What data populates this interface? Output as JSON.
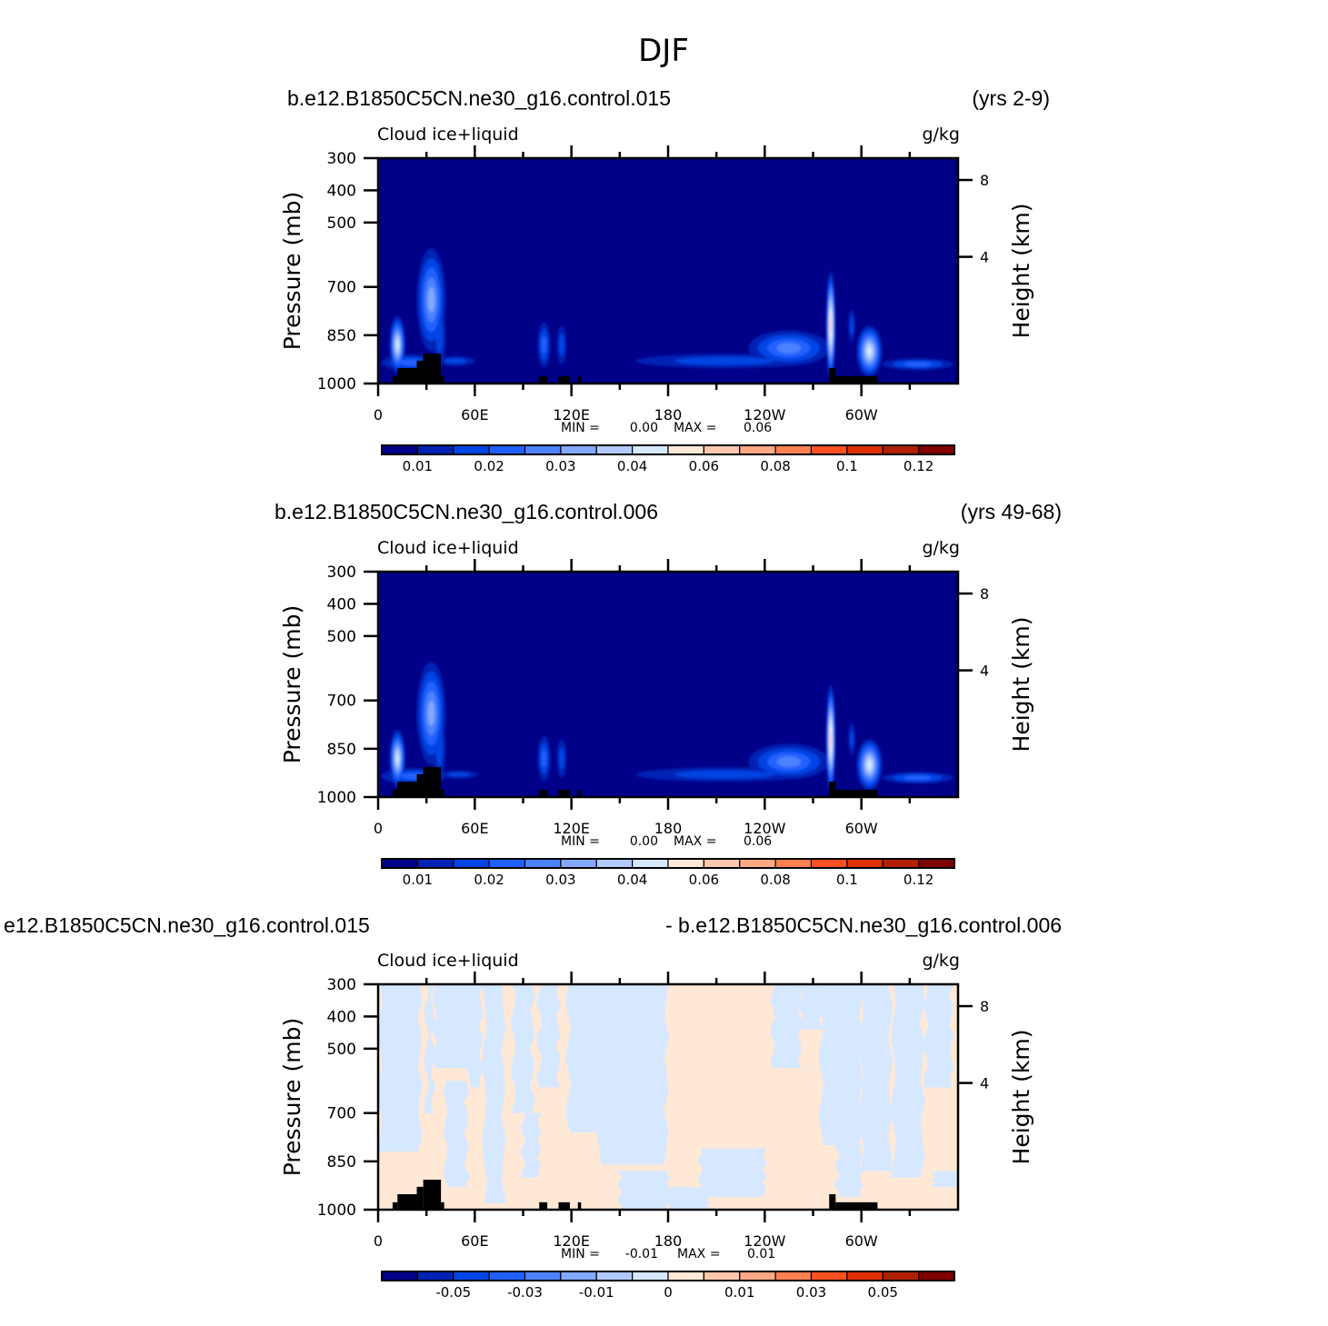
{
  "main_title": "DJF",
  "colors": {
    "fill_levels": [
      "#000088",
      "#0022b4",
      "#0044e4",
      "#2060ff",
      "#4c82ff",
      "#82a8ff",
      "#b2caff",
      "#d6e8ff",
      "#ffe8d6",
      "#ffc8ae",
      "#ffa884",
      "#ff8050",
      "#ff5022",
      "#e03000",
      "#b02000",
      "#800000"
    ],
    "topography": "#000000"
  },
  "chart_data": [
    {
      "type": "contour",
      "title_left": "b.e12.B1850C5CN.ne30_g16.control.015",
      "title_right": "(yrs 2-9)",
      "field_label": "Cloud ice+liquid",
      "units": "g/kg",
      "ylabel": "Pressure (mb)",
      "ylabel_right": "Height (km)",
      "yticks": [
        300,
        400,
        500,
        700,
        850,
        1000
      ],
      "ylim": [
        1000,
        300
      ],
      "yticks_right": [
        8,
        4
      ],
      "xlim": [
        0,
        360
      ],
      "xticks": [
        {
          "lon": 0,
          "label": "0"
        },
        {
          "lon": 60,
          "label": "60E"
        },
        {
          "lon": 120,
          "label": "120E"
        },
        {
          "lon": 180,
          "label": "180"
        },
        {
          "lon": 240,
          "label": "120W"
        },
        {
          "lon": 300,
          "label": "60W"
        }
      ],
      "min_label": "MIN =",
      "min_value": "0.00",
      "max_label": "MAX =",
      "max_value": "0.06",
      "colorbar_labels": [
        "0.01",
        "0.02",
        "0.03",
        "0.04",
        "0.06",
        "0.08",
        "0.1",
        "0.12"
      ],
      "colorbar_label_offset": 1,
      "features": [
        {
          "lon": 20,
          "p": 935,
          "rlon": 18,
          "rp": 25,
          "peak": 3
        },
        {
          "lon": 48,
          "p": 930,
          "rlon": 12,
          "rp": 15,
          "peak": 2
        },
        {
          "lon": 12,
          "p": 880,
          "rlon": 5,
          "rp": 90,
          "peak": 7
        },
        {
          "lon": 33,
          "p": 740,
          "rlon": 9,
          "rp": 160,
          "peak": 5
        },
        {
          "lon": 38,
          "p": 850,
          "rlon": 4,
          "rp": 100,
          "peak": 2
        },
        {
          "lon": 103,
          "p": 880,
          "rlon": 4,
          "rp": 70,
          "peak": 3
        },
        {
          "lon": 114,
          "p": 880,
          "rlon": 3,
          "rp": 60,
          "peak": 2
        },
        {
          "lon": 215,
          "p": 930,
          "rlon": 55,
          "rp": 22,
          "peak": 2
        },
        {
          "lon": 255,
          "p": 890,
          "rlon": 25,
          "rp": 55,
          "peak": 4
        },
        {
          "lon": 281,
          "p": 820,
          "rlon": 3,
          "rp": 170,
          "peak": 9
        },
        {
          "lon": 294,
          "p": 820,
          "rlon": 2,
          "rp": 50,
          "peak": 2
        },
        {
          "lon": 305,
          "p": 900,
          "rlon": 8,
          "rp": 80,
          "peak": 7
        },
        {
          "lon": 335,
          "p": 940,
          "rlon": 22,
          "rp": 18,
          "peak": 3
        }
      ],
      "topography_mask": [
        [
          9,
          12,
          977
        ],
        [
          12,
          24,
          952
        ],
        [
          24,
          28,
          929
        ],
        [
          28,
          39,
          907
        ],
        [
          39,
          41,
          977
        ],
        [
          100,
          105,
          977
        ],
        [
          112,
          119,
          977
        ],
        [
          124,
          126,
          977
        ],
        [
          280,
          284,
          952
        ],
        [
          284,
          310,
          977
        ]
      ]
    },
    {
      "type": "contour",
      "title_left": "b.e12.B1850C5CN.ne30_g16.control.006",
      "title_right": "(yrs 49-68)",
      "field_label": "Cloud ice+liquid",
      "units": "g/kg",
      "ylabel": "Pressure (mb)",
      "ylabel_right": "Height (km)",
      "yticks": [
        300,
        400,
        500,
        700,
        850,
        1000
      ],
      "ylim": [
        1000,
        300
      ],
      "yticks_right": [
        8,
        4
      ],
      "xlim": [
        0,
        360
      ],
      "xticks": [
        {
          "lon": 0,
          "label": "0"
        },
        {
          "lon": 60,
          "label": "60E"
        },
        {
          "lon": 120,
          "label": "120E"
        },
        {
          "lon": 180,
          "label": "180"
        },
        {
          "lon": 240,
          "label": "120W"
        },
        {
          "lon": 300,
          "label": "60W"
        }
      ],
      "min_label": "MIN =",
      "min_value": "0.00",
      "max_label": "MAX =",
      "max_value": "0.06",
      "colorbar_labels": [
        "0.01",
        "0.02",
        "0.03",
        "0.04",
        "0.06",
        "0.08",
        "0.1",
        "0.12"
      ],
      "colorbar_label_offset": 1,
      "features": [
        {
          "lon": 22,
          "p": 935,
          "rlon": 20,
          "rp": 25,
          "peak": 3
        },
        {
          "lon": 50,
          "p": 930,
          "rlon": 12,
          "rp": 12,
          "peak": 2
        },
        {
          "lon": 12,
          "p": 880,
          "rlon": 5,
          "rp": 90,
          "peak": 7
        },
        {
          "lon": 33,
          "p": 740,
          "rlon": 9,
          "rp": 160,
          "peak": 5
        },
        {
          "lon": 38,
          "p": 850,
          "rlon": 4,
          "rp": 100,
          "peak": 2
        },
        {
          "lon": 103,
          "p": 880,
          "rlon": 4,
          "rp": 70,
          "peak": 3
        },
        {
          "lon": 114,
          "p": 880,
          "rlon": 3,
          "rp": 60,
          "peak": 2
        },
        {
          "lon": 215,
          "p": 930,
          "rlon": 55,
          "rp": 22,
          "peak": 2
        },
        {
          "lon": 255,
          "p": 890,
          "rlon": 25,
          "rp": 55,
          "peak": 4
        },
        {
          "lon": 281,
          "p": 820,
          "rlon": 3,
          "rp": 170,
          "peak": 9
        },
        {
          "lon": 294,
          "p": 820,
          "rlon": 2,
          "rp": 50,
          "peak": 2
        },
        {
          "lon": 305,
          "p": 900,
          "rlon": 8,
          "rp": 80,
          "peak": 7
        },
        {
          "lon": 335,
          "p": 940,
          "rlon": 22,
          "rp": 18,
          "peak": 3
        }
      ],
      "topography_mask": [
        [
          9,
          12,
          977
        ],
        [
          12,
          24,
          952
        ],
        [
          24,
          28,
          929
        ],
        [
          28,
          39,
          907
        ],
        [
          39,
          41,
          977
        ],
        [
          100,
          105,
          977
        ],
        [
          112,
          119,
          977
        ],
        [
          124,
          126,
          977
        ],
        [
          280,
          284,
          952
        ],
        [
          284,
          310,
          977
        ]
      ]
    },
    {
      "type": "contour",
      "title_left": "e12.B1850C5CN.ne30_g16.control.015",
      "title_right": "- b.e12.B1850C5CN.ne30_g16.control.006",
      "field_label": "Cloud ice+liquid",
      "units": "g/kg",
      "ylabel": "Pressure (mb)",
      "ylabel_right": "Height (km)",
      "yticks": [
        300,
        400,
        500,
        700,
        850,
        1000
      ],
      "ylim": [
        1000,
        300
      ],
      "yticks_right": [
        8,
        4
      ],
      "xlim": [
        0,
        360
      ],
      "xticks": [
        {
          "lon": 0,
          "label": "0"
        },
        {
          "lon": 60,
          "label": "60E"
        },
        {
          "lon": 120,
          "label": "120E"
        },
        {
          "lon": 180,
          "label": "180"
        },
        {
          "lon": 240,
          "label": "120W"
        },
        {
          "lon": 300,
          "label": "60W"
        }
      ],
      "min_label": "MIN =",
      "min_value": "-0.01",
      "max_label": "MAX =",
      "max_value": "0.01",
      "colorbar_labels": [
        "-0.05",
        "-0.03",
        "-0.01",
        "0",
        "0.01",
        "0.03",
        "0.05"
      ],
      "colorbar_label_offset": 2,
      "background_sign": "positive",
      "negative_regions": [
        [
          1,
          26,
          300,
          820
        ],
        [
          30,
          34,
          300,
          700
        ],
        [
          35,
          60,
          300,
          560
        ],
        [
          42,
          55,
          600,
          930
        ],
        [
          56,
          64,
          300,
          620
        ],
        [
          66,
          78,
          300,
          980
        ],
        [
          84,
          96,
          300,
          700
        ],
        [
          90,
          100,
          700,
          900
        ],
        [
          100,
          112,
          300,
          620
        ],
        [
          118,
          140,
          300,
          760
        ],
        [
          137,
          179,
          300,
          860
        ],
        [
          150,
          180,
          880,
          1000
        ],
        [
          180,
          205,
          930,
          1000
        ],
        [
          200,
          240,
          810,
          960
        ],
        [
          245,
          262,
          300,
          560
        ],
        [
          262,
          275,
          300,
          440
        ],
        [
          275,
          300,
          300,
          800
        ],
        [
          285,
          300,
          800,
          960
        ],
        [
          300,
          318,
          300,
          880
        ],
        [
          320,
          338,
          300,
          900
        ],
        [
          340,
          356,
          300,
          620
        ],
        [
          345,
          360,
          880,
          930
        ]
      ],
      "topography_mask": [
        [
          9,
          12,
          977
        ],
        [
          12,
          24,
          952
        ],
        [
          24,
          28,
          929
        ],
        [
          28,
          39,
          907
        ],
        [
          39,
          41,
          977
        ],
        [
          100,
          105,
          977
        ],
        [
          112,
          119,
          977
        ],
        [
          124,
          126,
          977
        ],
        [
          280,
          284,
          952
        ],
        [
          284,
          310,
          977
        ]
      ]
    }
  ]
}
